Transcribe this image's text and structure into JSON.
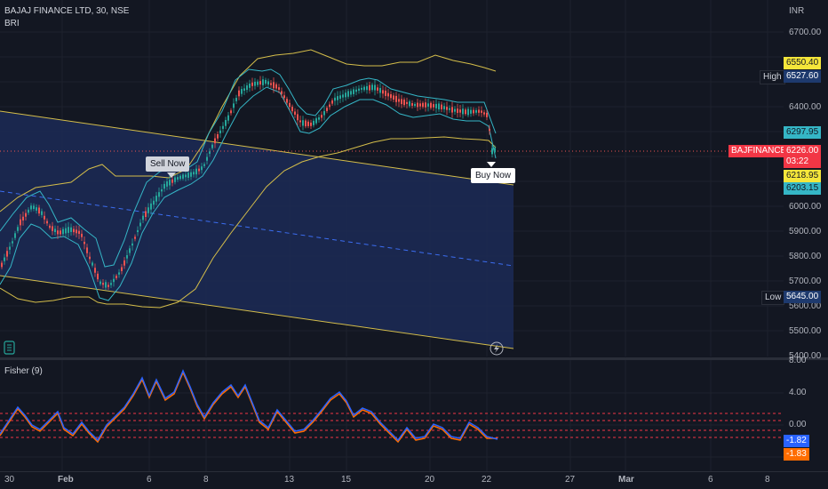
{
  "header": {
    "title": "BAJAJ FINANCE LTD, 30, NSE",
    "indicator": "BRI"
  },
  "currency": "INR",
  "price_axis": {
    "ticks": [
      "6700.00",
      "6400.00",
      "6000.00",
      "5900.00",
      "5800.00",
      "5700.00",
      "5600.00",
      "5500.00",
      "5400.00"
    ]
  },
  "price_tags": {
    "high_label": "High",
    "high_value": "6527.60",
    "top_yellow": "6550.40",
    "blue_upper": "6297.95",
    "symbol": "BAJFINANCE",
    "current_price": "6226.00",
    "countdown": "03:22",
    "yellow_mid": "6218.95",
    "blue_lower": "6203.15",
    "low_label": "Low",
    "low_value": "5645.00"
  },
  "annotations": {
    "sell": "Sell Now",
    "buy": "Buy Now"
  },
  "fisher": {
    "title": "Fisher (9)",
    "ticks": [
      "8.00",
      "4.00",
      "0.00"
    ],
    "value_blue": "-1.82",
    "value_orange": "-1.83"
  },
  "time_axis": {
    "labels": [
      "30",
      "Feb",
      "6",
      "8",
      "13",
      "15",
      "20",
      "22",
      "27",
      "Mar",
      "6",
      "8"
    ]
  },
  "colors": {
    "background": "#131722",
    "bull": "#26a69a",
    "bear": "#ef5350",
    "band_outer": "#d4bd4a",
    "band_inner": "#35b6c6",
    "channel_fill": "#1c2a56",
    "channel_mid": "#3c6df0",
    "fisher_blue": "#2962ff",
    "fisher_orange": "#ff6d00",
    "level_line": "#f23645"
  }
}
